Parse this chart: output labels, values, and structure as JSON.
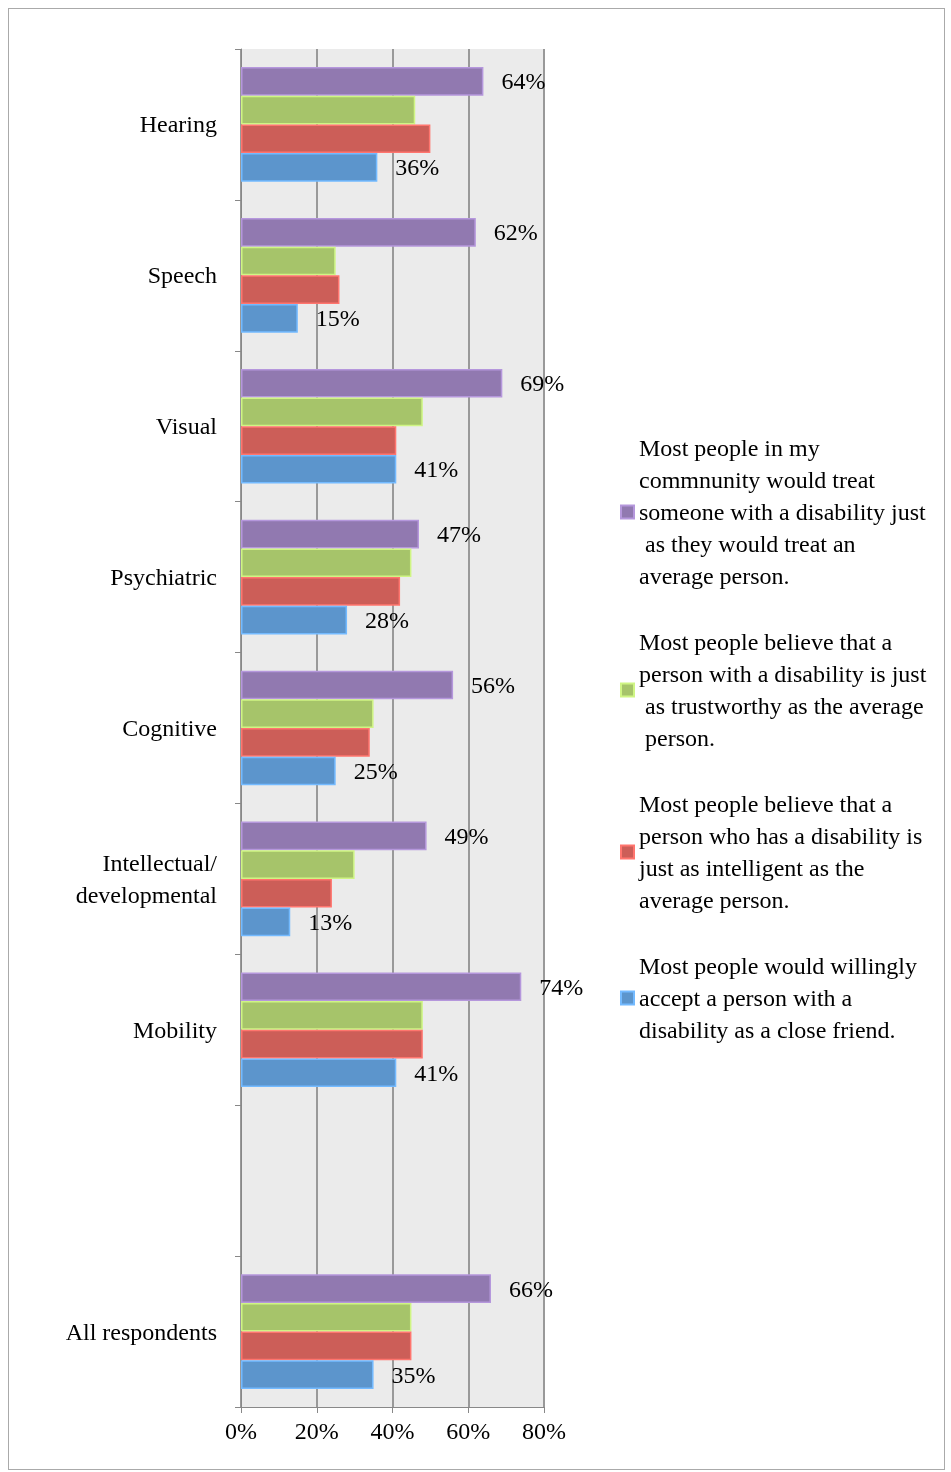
{
  "chart_data": {
    "type": "bar",
    "orientation": "horizontal",
    "categories": [
      "Hearing",
      "Speech",
      "Visual",
      "Psychiatric",
      "Cognitive",
      "Intellectual/\ndevelopmental",
      "Mobility",
      null,
      "All respondents"
    ],
    "series": [
      {
        "name": "Most people in my commnunity would treat someone with a disability just as they would treat an average person.",
        "color": "#9179b0",
        "values": [
          64,
          62,
          69,
          47,
          56,
          49,
          74,
          null,
          66
        ],
        "value_labels": [
          "64%",
          "62%",
          "69%",
          "47%",
          "56%",
          "49%",
          "74%",
          null,
          "66%"
        ]
      },
      {
        "name": "Most people believe that a person with a disability is just as trustworthy as the average person.",
        "color": "#a6c46a",
        "values": [
          46,
          25,
          48,
          45,
          35,
          30,
          48,
          null,
          45
        ]
      },
      {
        "name": "Most people believe that a person who has a disability is just as intelligent as the average person.",
        "color": "#cc5e58",
        "values": [
          50,
          26,
          41,
          42,
          34,
          24,
          48,
          null,
          45
        ]
      },
      {
        "name": "Most people would willingly accept a person with a disability as a close friend.",
        "color": "#5c95cc",
        "values": [
          36,
          15,
          41,
          28,
          25,
          13,
          41,
          null,
          35
        ],
        "value_labels": [
          "36%",
          "15%",
          "41%",
          "28%",
          "25%",
          "13%",
          "41%",
          null,
          "35%"
        ]
      }
    ],
    "xlim": [
      0,
      80
    ],
    "xticks": [
      {
        "value": 0,
        "label": "0%"
      },
      {
        "value": 20,
        "label": "20%"
      },
      {
        "value": 40,
        "label": "40%"
      },
      {
        "value": 60,
        "label": "60%"
      },
      {
        "value": 80,
        "label": "80%"
      }
    ],
    "grid": "x",
    "legend": "right"
  }
}
